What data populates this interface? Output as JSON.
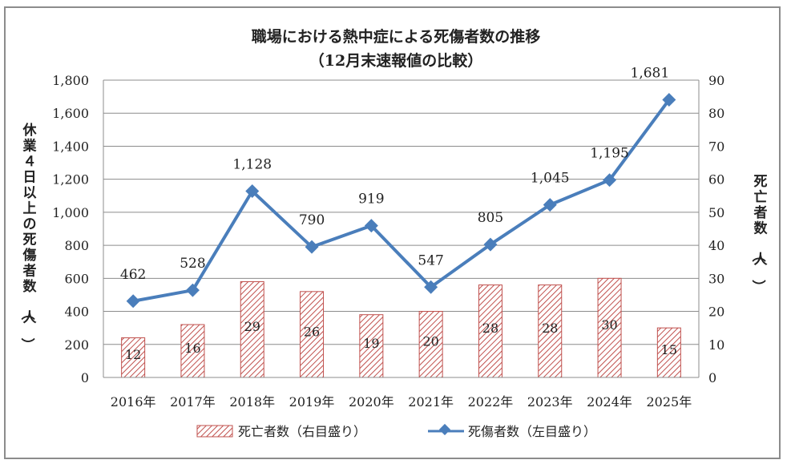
{
  "chart_data": {
    "type": "bar+line",
    "title": "職場における熱中症による死傷者数の推移",
    "subtitle": "（12月末速報値の比較）",
    "categories": [
      "2016年",
      "2017年",
      "2018年",
      "2019年",
      "2020年",
      "2021年",
      "2022年",
      "2023年",
      "2024年",
      "2025年"
    ],
    "y_left": {
      "label": "休業４日以上の死傷者数（人）",
      "range": [
        0,
        1800
      ],
      "ticks": [
        "0",
        "200",
        "400",
        "600",
        "800",
        "1,000",
        "1,200",
        "1,400",
        "1,600",
        "1,800"
      ]
    },
    "y_right": {
      "label": "死亡者数（人）",
      "range": [
        0,
        90
      ],
      "ticks": [
        "0",
        "10",
        "20",
        "30",
        "40",
        "50",
        "60",
        "70",
        "80",
        "90"
      ]
    },
    "grid": true,
    "legend_position": "bottom",
    "series": [
      {
        "name": "死亡者数（右目盛り）",
        "type": "bar",
        "axis": "right",
        "color": "#c0504d",
        "values": [
          12,
          16,
          29,
          26,
          19,
          20,
          28,
          28,
          30,
          15
        ],
        "labels": [
          "12",
          "16",
          "29",
          "26",
          "19",
          "20",
          "28",
          "28",
          "30",
          "15"
        ]
      },
      {
        "name": "死傷者数（左目盛り）",
        "type": "line",
        "axis": "left",
        "color": "#4a7ebb",
        "values": [
          462,
          528,
          1128,
          790,
          919,
          547,
          805,
          1045,
          1195,
          1681
        ],
        "labels": [
          "462",
          "528",
          "1,128",
          "790",
          "919",
          "547",
          "805",
          "1,045",
          "1,195",
          "1,681"
        ]
      }
    ]
  }
}
